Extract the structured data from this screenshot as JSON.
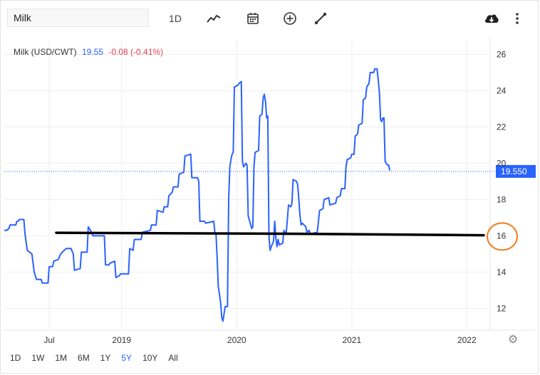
{
  "toolbar": {
    "search_value": "Milk",
    "interval_label": "1D",
    "icons": [
      "line-chart-icon",
      "calendar-icon",
      "plus-circle-icon",
      "draw-line-icon",
      "cloud-download-icon",
      "more-vertical-icon"
    ]
  },
  "legend": {
    "name": "Milk (USD/CWT)",
    "price": "19.55",
    "change": "-0.08 (-0.41%)"
  },
  "ranges": [
    "1D",
    "1W",
    "1M",
    "6M",
    "1Y",
    "5Y",
    "10Y",
    "All"
  ],
  "active_range": "5Y",
  "price_tag": "19.550",
  "colors": {
    "line": "#2962ff",
    "change_negative": "#e0404f",
    "annotation_line": "#000000",
    "annotation_circle": "#f07c1c"
  },
  "chart_data": {
    "type": "line",
    "x_tick_labels": [
      "Jul",
      "2019",
      "2020",
      "2021",
      "2022"
    ],
    "y_tick_labels": [
      "12",
      "14",
      "16",
      "18",
      "20",
      "22",
      "24",
      "26"
    ],
    "ylim": [
      10.8,
      26.8
    ],
    "xlim": [
      2017.98,
      2022.19
    ],
    "grid": true,
    "series": [
      {
        "name": "Milk (USD/CWT)",
        "points": [
          [
            2017.98,
            16.3
          ],
          [
            2018.0,
            16.3
          ],
          [
            2018.02,
            16.4
          ],
          [
            2018.03,
            16.6
          ],
          [
            2018.08,
            16.6
          ],
          [
            2018.09,
            16.8
          ],
          [
            2018.1,
            16.8
          ],
          [
            2018.11,
            16.9
          ],
          [
            2018.15,
            16.9
          ],
          [
            2018.16,
            16.1
          ],
          [
            2018.18,
            15.2
          ],
          [
            2018.22,
            15.0
          ],
          [
            2018.24,
            14.0
          ],
          [
            2018.26,
            13.6
          ],
          [
            2018.3,
            13.6
          ],
          [
            2018.31,
            13.4
          ],
          [
            2018.36,
            13.4
          ],
          [
            2018.37,
            14.3
          ],
          [
            2018.4,
            14.3
          ],
          [
            2018.41,
            14.6
          ],
          [
            2018.45,
            14.7
          ],
          [
            2018.47,
            15.0
          ],
          [
            2018.5,
            15.2
          ],
          [
            2018.52,
            15.3
          ],
          [
            2018.56,
            15.3
          ],
          [
            2018.58,
            15.0
          ],
          [
            2018.59,
            14.1
          ],
          [
            2018.64,
            14.2
          ],
          [
            2018.65,
            15.1
          ],
          [
            2018.7,
            15.1
          ],
          [
            2018.71,
            16.5
          ],
          [
            2018.73,
            16.3
          ],
          [
            2018.75,
            16.0
          ],
          [
            2018.85,
            16.0
          ],
          [
            2018.86,
            14.4
          ],
          [
            2018.89,
            14.4
          ],
          [
            2018.9,
            14.5
          ],
          [
            2018.94,
            14.6
          ],
          [
            2018.95,
            13.7
          ],
          [
            2018.98,
            13.8
          ],
          [
            2018.99,
            13.9
          ],
          [
            2019.06,
            13.9
          ],
          [
            2019.07,
            15.3
          ],
          [
            2019.1,
            15.2
          ],
          [
            2019.11,
            15.8
          ],
          [
            2019.17,
            15.8
          ],
          [
            2019.18,
            16.2
          ],
          [
            2019.25,
            16.3
          ],
          [
            2019.26,
            16.6
          ],
          [
            2019.3,
            16.6
          ],
          [
            2019.31,
            17.4
          ],
          [
            2019.36,
            17.3
          ],
          [
            2019.37,
            17.6
          ],
          [
            2019.4,
            17.6
          ],
          [
            2019.41,
            18.2
          ],
          [
            2019.44,
            18.4
          ],
          [
            2019.45,
            18.7
          ],
          [
            2019.49,
            18.7
          ],
          [
            2019.5,
            19.4
          ],
          [
            2019.54,
            19.5
          ],
          [
            2019.55,
            20.4
          ],
          [
            2019.6,
            20.5
          ],
          [
            2019.61,
            19.2
          ],
          [
            2019.66,
            19.2
          ],
          [
            2019.67,
            19.0
          ],
          [
            2019.68,
            16.8
          ],
          [
            2019.72,
            16.8
          ],
          [
            2019.73,
            16.7
          ],
          [
            2019.8,
            16.8
          ],
          [
            2019.81,
            16.2
          ],
          [
            2019.82,
            16.1
          ],
          [
            2019.83,
            14.8
          ],
          [
            2019.84,
            13.2
          ],
          [
            2019.85,
            12.8
          ],
          [
            2019.86,
            12.3
          ],
          [
            2019.87,
            11.5
          ],
          [
            2019.88,
            11.3
          ],
          [
            2019.89,
            11.7
          ],
          [
            2019.9,
            12.1
          ],
          [
            2019.92,
            12.1
          ],
          [
            2019.93,
            18.0
          ],
          [
            2019.94,
            19.8
          ],
          [
            2019.95,
            20.2
          ],
          [
            2019.96,
            20.5
          ],
          [
            2019.97,
            20.6
          ],
          [
            2019.98,
            24.2
          ],
          [
            2020.01,
            24.3
          ],
          [
            2020.02,
            24.4
          ],
          [
            2020.04,
            24.5
          ],
          [
            2020.05,
            20.1
          ],
          [
            2020.06,
            19.8
          ],
          [
            2020.08,
            20.0
          ],
          [
            2020.09,
            19.9
          ],
          [
            2020.1,
            17.1
          ],
          [
            2020.13,
            16.4
          ],
          [
            2020.14,
            16.5
          ],
          [
            2020.15,
            19.8
          ],
          [
            2020.16,
            20.6
          ],
          [
            2020.19,
            20.7
          ],
          [
            2020.2,
            22.6
          ],
          [
            2020.22,
            22.7
          ],
          [
            2020.23,
            23.6
          ],
          [
            2020.24,
            23.8
          ],
          [
            2020.25,
            23.4
          ],
          [
            2020.26,
            22.5
          ],
          [
            2020.27,
            22.6
          ],
          [
            2020.28,
            16.0
          ],
          [
            2020.29,
            15.2
          ],
          [
            2020.3,
            15.4
          ],
          [
            2020.32,
            15.7
          ],
          [
            2020.33,
            16.8
          ],
          [
            2020.34,
            15.9
          ],
          [
            2020.35,
            15.4
          ],
          [
            2020.36,
            15.8
          ],
          [
            2020.37,
            15.5
          ],
          [
            2020.4,
            15.6
          ],
          [
            2020.41,
            16.3
          ],
          [
            2020.43,
            16.1
          ],
          [
            2020.45,
            17.7
          ],
          [
            2020.47,
            17.6
          ],
          [
            2020.48,
            17.8
          ],
          [
            2020.49,
            19.1
          ],
          [
            2020.52,
            19.0
          ],
          [
            2020.53,
            18.8
          ],
          [
            2020.54,
            18.0
          ],
          [
            2020.55,
            17.1
          ],
          [
            2020.56,
            16.6
          ],
          [
            2020.57,
            16.7
          ],
          [
            2020.6,
            16.5
          ],
          [
            2020.61,
            16.2
          ],
          [
            2020.63,
            16.3
          ],
          [
            2020.64,
            16.1
          ],
          [
            2020.7,
            16.2
          ],
          [
            2020.71,
            16.8
          ],
          [
            2020.72,
            17.4
          ],
          [
            2020.75,
            17.5
          ],
          [
            2020.76,
            18.0
          ],
          [
            2020.8,
            18.1
          ],
          [
            2020.81,
            17.7
          ],
          [
            2020.86,
            17.8
          ],
          [
            2020.87,
            18.1
          ],
          [
            2020.9,
            18.2
          ],
          [
            2020.91,
            18.6
          ],
          [
            2020.94,
            18.6
          ],
          [
            2020.95,
            19.8
          ],
          [
            2020.96,
            20.2
          ],
          [
            2020.99,
            20.3
          ],
          [
            2021.0,
            20.5
          ],
          [
            2021.02,
            20.5
          ],
          [
            2021.03,
            21.5
          ],
          [
            2021.05,
            21.6
          ],
          [
            2021.06,
            22.1
          ],
          [
            2021.09,
            22.2
          ],
          [
            2021.1,
            23.5
          ],
          [
            2021.12,
            23.6
          ],
          [
            2021.13,
            24.2
          ],
          [
            2021.15,
            24.4
          ],
          [
            2021.16,
            25.0
          ],
          [
            2021.19,
            25.0
          ],
          [
            2021.2,
            25.2
          ],
          [
            2021.22,
            25.2
          ],
          [
            2021.23,
            24.6
          ],
          [
            2021.24,
            23.9
          ],
          [
            2021.25,
            22.4
          ],
          [
            2021.26,
            22.3
          ],
          [
            2021.27,
            22.5
          ],
          [
            2021.28,
            22.5
          ],
          [
            2021.29,
            20.1
          ],
          [
            2021.3,
            20.0
          ],
          [
            2021.31,
            19.9
          ],
          [
            2021.32,
            19.9
          ],
          [
            2021.33,
            19.6
          ]
        ]
      }
    ],
    "annotations": [
      {
        "type": "horizontal-line",
        "value": 16.05,
        "color": "#000000"
      },
      {
        "type": "circle",
        "around_tick": "16",
        "color": "#f07c1c"
      }
    ]
  }
}
